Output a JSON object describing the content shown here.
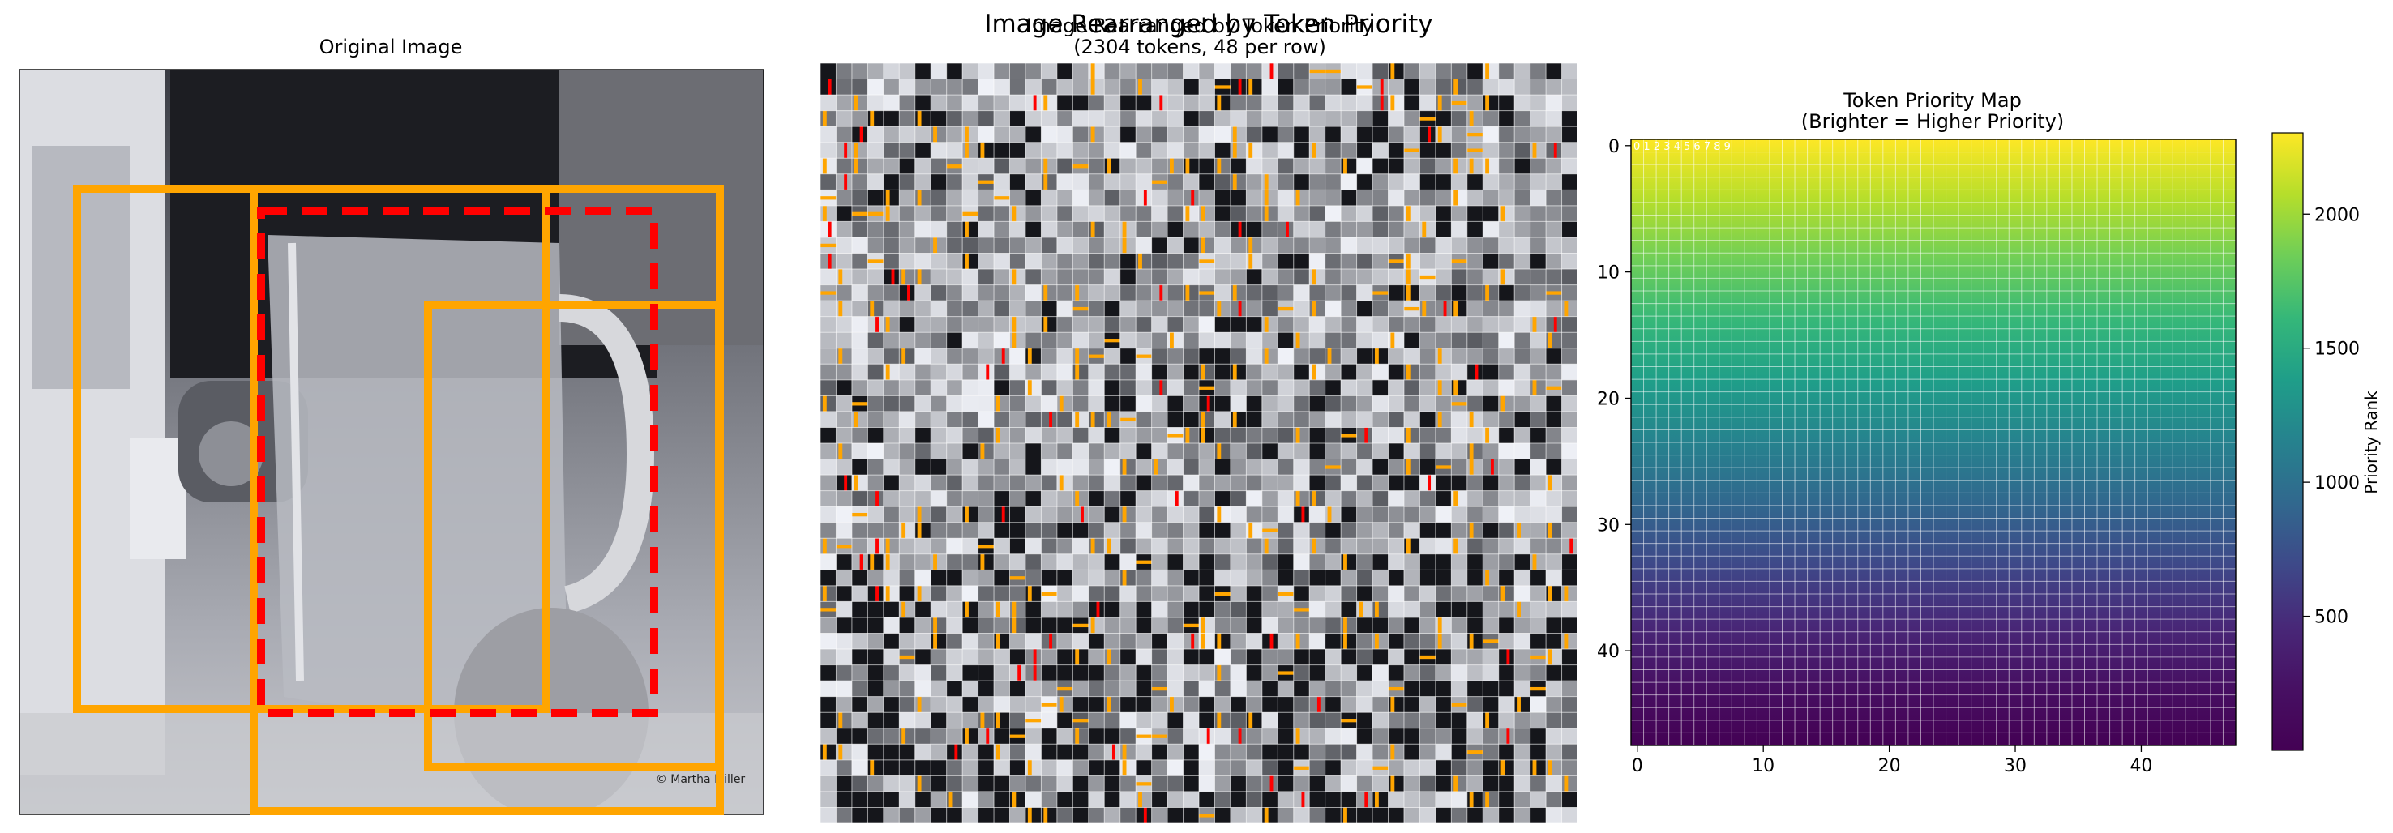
{
  "figure": {
    "suptitle": "Image Rearranged by Token Priority"
  },
  "panels": {
    "original": {
      "title": "Original Image",
      "watermark": "© Martha Miller"
    },
    "rearranged": {
      "title_line1": "Image Rearranged by Token Priority",
      "title_line2": "(2304 tokens, 48 per row)"
    },
    "priority_map": {
      "title_line1": "Token Priority Map",
      "title_line2": "(Brighter = Higher Priority)",
      "overlay_text": "0 1 2 3 4 5 6 7 8 9"
    }
  },
  "colors": {
    "box_orange": "#FFA500",
    "box_red": "#FF0000",
    "grid_white": "#ffffff"
  },
  "chart_data": [
    {
      "type": "heatmap",
      "title": "Token Priority Map\n(Brighter = Higher Priority)",
      "grid_size": [
        48,
        48
      ],
      "value_rule": "rank decreases row by row from top-left: 2303 at row 0 col 0 down to 0 at row 47 col 47",
      "x_ticks": [
        0,
        10,
        20,
        30,
        40
      ],
      "y_ticks": [
        0,
        10,
        20,
        30,
        40
      ],
      "xlim": [
        -0.5,
        47.5
      ],
      "ylim": [
        47.5,
        -0.5
      ],
      "colorbar": {
        "label": "Priority Rank",
        "ticks": [
          500,
          1000,
          1500,
          2000
        ],
        "range": [
          0,
          2303
        ],
        "colormap": "viridis"
      },
      "grid": true
    }
  ]
}
